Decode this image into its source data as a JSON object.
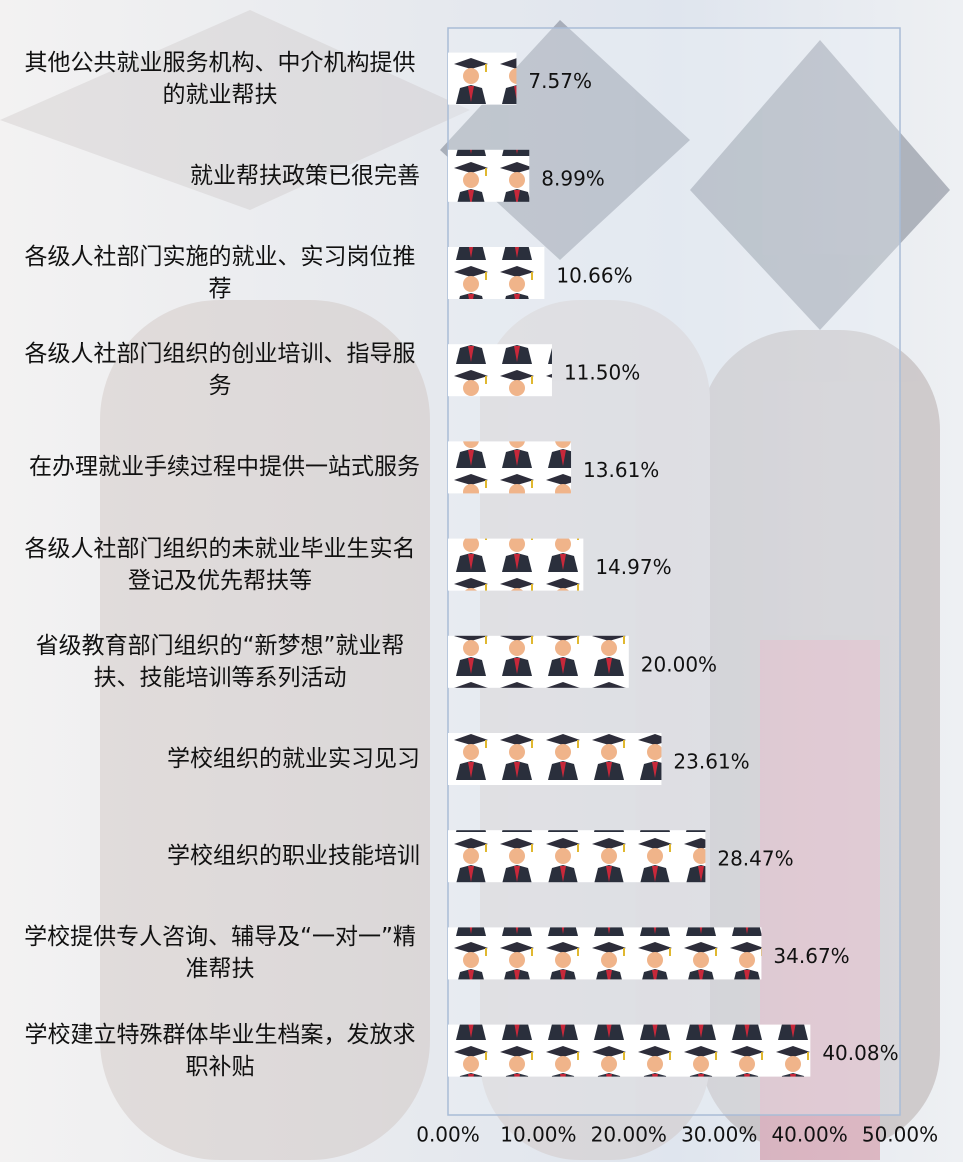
{
  "chart_data": {
    "type": "bar",
    "orientation": "horizontal",
    "categories": [
      "其他公共就业服务机构、中介机构提供的就业帮扶",
      "就业帮扶政策已很完善",
      "各级人社部门实施的就业、实习岗位推荐",
      "各级人社部门组织的创业培训、指导服务",
      "在办理就业手续过程中提供一站式服务",
      "各级人社部门组织的未就业毕业生实名登记及优先帮扶等",
      "省级教育部门组织的“新梦想”就业帮扶、技能培训等系列活动",
      "学校组织的就业实习见习",
      "学校组织的职业技能培训",
      "学校提供专人咨询、辅导及“一对一”精准帮扶",
      "学校建立特殊群体毕业生档案，发放求职补贴"
    ],
    "values": [
      7.57,
      8.99,
      10.66,
      11.5,
      13.61,
      14.97,
      20.0,
      23.61,
      28.47,
      34.67,
      40.08
    ],
    "value_labels": [
      "7.57%",
      "8.99%",
      "10.66%",
      "11.50%",
      "13.61%",
      "14.97%",
      "20.00%",
      "23.61%",
      "28.47%",
      "34.67%",
      "40.08%"
    ],
    "xlim": [
      0,
      50
    ],
    "xticks": [
      {
        "value": 0,
        "label": "0.00%"
      },
      {
        "value": 10,
        "label": "10.00%"
      },
      {
        "value": 20,
        "label": "20.00%"
      },
      {
        "value": 30,
        "label": "30.00%"
      },
      {
        "value": 40,
        "label": "40.00%"
      },
      {
        "value": 50,
        "label": "50.00%"
      }
    ],
    "grid": false
  }
}
